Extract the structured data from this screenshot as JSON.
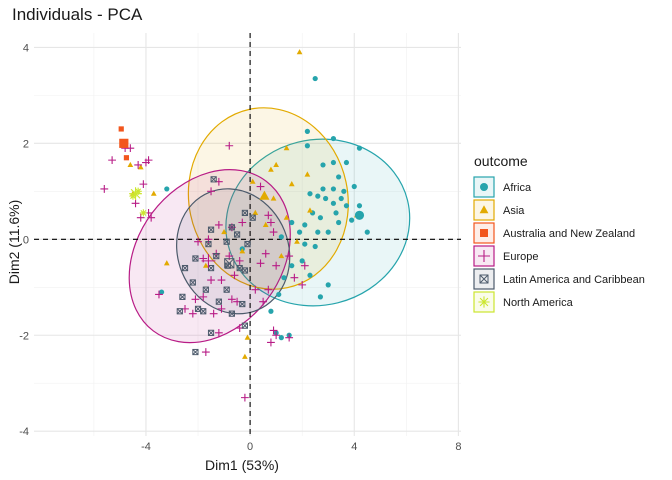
{
  "chart_data": {
    "type": "scatter",
    "title": "Individuals - PCA",
    "xlabel": "Dim1 (53%)",
    "ylabel": "Dim2 (11.6%)",
    "xlim": [
      -8.3,
      8.1
    ],
    "ylim": [
      -4.1,
      4.3
    ],
    "xticks": [
      -4,
      0,
      4,
      8
    ],
    "yticks": [
      -4,
      -2,
      0,
      2,
      4
    ],
    "xtick_labels": [
      "-4",
      "0",
      "4",
      "8"
    ],
    "ytick_labels": [
      "-4",
      "-2",
      "0",
      "2",
      "4"
    ],
    "grid": true,
    "reference_lines": {
      "x": 0,
      "y": 0,
      "style": "dashed"
    },
    "legend": {
      "title": "outcome",
      "placement": "right"
    },
    "series": [
      {
        "name": "Africa",
        "color": "#26A4AC",
        "marker": "circle",
        "centroid": [
          4.2,
          0.5
        ],
        "ellipse": {
          "center": [
            2.6,
            0.35
          ],
          "rx": 7.1,
          "ry": 3.45,
          "angle": -14
        },
        "points": [
          [
            2.5,
            3.35
          ],
          [
            2.2,
            2.25
          ],
          [
            3.2,
            2.1
          ],
          [
            2.2,
            1.95
          ],
          [
            4.2,
            1.9
          ],
          [
            2.8,
            1.55
          ],
          [
            3.2,
            1.6
          ],
          [
            3.7,
            1.6
          ],
          [
            3.4,
            1.3
          ],
          [
            4.0,
            1.1
          ],
          [
            2.8,
            1.05
          ],
          [
            3.2,
            1.05
          ],
          [
            3.6,
            1.0
          ],
          [
            2.3,
            0.95
          ],
          [
            2.6,
            0.9
          ],
          [
            2.9,
            0.85
          ],
          [
            3.5,
            0.85
          ],
          [
            3.2,
            0.75
          ],
          [
            4.2,
            0.7
          ],
          [
            3.7,
            0.7
          ],
          [
            3.3,
            0.55
          ],
          [
            2.4,
            0.55
          ],
          [
            2.7,
            0.45
          ],
          [
            3.9,
            0.4
          ],
          [
            1.6,
            0.35
          ],
          [
            2.1,
            0.3
          ],
          [
            3.4,
            0.35
          ],
          [
            1.9,
            0.15
          ],
          [
            2.6,
            0.15
          ],
          [
            3.0,
            0.15
          ],
          [
            4.5,
            0.15
          ],
          [
            1.2,
            0.05
          ],
          [
            2.1,
            -0.1
          ],
          [
            2.5,
            -0.15
          ],
          [
            2.0,
            -0.45
          ],
          [
            1.6,
            -0.55
          ],
          [
            2.3,
            -0.75
          ],
          [
            2.7,
            -1.2
          ],
          [
            3.0,
            -0.95
          ],
          [
            1.3,
            -0.8
          ],
          [
            1.1,
            -1.15
          ],
          [
            0.8,
            -1.5
          ],
          [
            1.0,
            -1.95
          ],
          [
            -3.4,
            -1.1
          ],
          [
            -3.2,
            1.05
          ],
          [
            -0.3,
            -0.2
          ],
          [
            1.2,
            -2.05
          ],
          [
            1.5,
            -2.0
          ]
        ]
      },
      {
        "name": "Asia",
        "color": "#E2AA00",
        "marker": "triangle",
        "centroid": [
          0.55,
          0.9
        ],
        "ellipse": {
          "center": [
            0.7,
            0.85
          ],
          "rx": 6.1,
          "ry": 3.8,
          "angle": -12
        },
        "points": [
          [
            1.9,
            3.9
          ],
          [
            -4.6,
            1.55
          ],
          [
            -4.2,
            1.5
          ],
          [
            1.4,
            1.9
          ],
          [
            2.2,
            1.35
          ],
          [
            1.0,
            1.55
          ],
          [
            0.8,
            1.45
          ],
          [
            1.6,
            1.15
          ],
          [
            0.1,
            1.2
          ],
          [
            -4.5,
            0.95
          ],
          [
            -3.7,
            0.95
          ],
          [
            0.9,
            0.85
          ],
          [
            2.3,
            0.6
          ],
          [
            1.4,
            0.45
          ],
          [
            4.1,
            0.5
          ],
          [
            0.6,
            0.3
          ],
          [
            -1.0,
            0.15
          ],
          [
            1.8,
            -0.05
          ],
          [
            1.2,
            -0.35
          ],
          [
            -1.7,
            -0.55
          ],
          [
            -0.1,
            -2.05
          ],
          [
            -0.2,
            -2.45
          ],
          [
            -0.3,
            -0.25
          ],
          [
            -3.2,
            -0.5
          ],
          [
            0.2,
            0.55
          ]
        ]
      },
      {
        "name": "Australia and New Zealand",
        "color": "#F2561D",
        "marker": "square",
        "centroid": [
          -4.85,
          2.0
        ],
        "ellipse": null,
        "points": [
          [
            -4.95,
            2.3
          ],
          [
            -4.75,
            1.7
          ],
          [
            -4.8,
            2.0
          ]
        ]
      },
      {
        "name": "Europe",
        "color": "#B81C86",
        "marker": "plus",
        "centroid": [
          -1.6,
          -0.45
        ],
        "ellipse": {
          "center": [
            -1.55,
            -0.35
          ],
          "rx": 7.2,
          "ry": 3.0,
          "angle": -53
        },
        "points": [
          [
            -5.3,
            1.65
          ],
          [
            -5.6,
            1.05
          ],
          [
            -4.8,
            1.9
          ],
          [
            -4.6,
            1.9
          ],
          [
            -4.3,
            1.55
          ],
          [
            -4.0,
            1.6
          ],
          [
            -3.9,
            1.65
          ],
          [
            -4.1,
            1.15
          ],
          [
            -4.4,
            0.75
          ],
          [
            -3.9,
            0.55
          ],
          [
            -4.2,
            0.45
          ],
          [
            -3.8,
            0.45
          ],
          [
            -0.8,
            1.95
          ],
          [
            -1.2,
            1.2
          ],
          [
            -1.5,
            1.0
          ],
          [
            0.4,
            1.1
          ],
          [
            0.7,
            0.5
          ],
          [
            0.8,
            0.35
          ],
          [
            0.9,
            0.15
          ],
          [
            0.6,
            -0.3
          ],
          [
            1.0,
            -0.55
          ],
          [
            1.5,
            -0.35
          ],
          [
            1.7,
            -0.8
          ],
          [
            2.1,
            -0.55
          ],
          [
            2.0,
            -0.95
          ],
          [
            -1.2,
            0.3
          ],
          [
            -0.7,
            0.25
          ],
          [
            -0.3,
            0.35
          ],
          [
            -1.6,
            0.0
          ],
          [
            -2.0,
            -0.05
          ],
          [
            -1.8,
            -0.4
          ],
          [
            -1.3,
            -0.3
          ],
          [
            -0.8,
            -0.35
          ],
          [
            -0.4,
            -0.45
          ],
          [
            -0.6,
            -0.75
          ],
          [
            -1.1,
            -0.85
          ],
          [
            -1.5,
            -0.85
          ],
          [
            -2.1,
            -1.25
          ],
          [
            -1.8,
            -1.2
          ],
          [
            -0.7,
            -1.25
          ],
          [
            0.2,
            -1.05
          ],
          [
            0.5,
            -1.3
          ],
          [
            0.7,
            -1.05
          ],
          [
            -2.2,
            -1.55
          ],
          [
            -1.4,
            -1.55
          ],
          [
            -1.1,
            -1.45
          ],
          [
            -0.4,
            -1.85
          ],
          [
            0.9,
            -1.9
          ],
          [
            1.0,
            -2.0
          ],
          [
            1.5,
            -2.05
          ],
          [
            -1.7,
            -2.35
          ],
          [
            0.8,
            -2.15
          ],
          [
            -0.2,
            -3.3
          ],
          [
            -3.5,
            -1.15
          ],
          [
            -2.5,
            -1.45
          ],
          [
            -0.5,
            -1.3
          ],
          [
            0.4,
            -0.5
          ],
          [
            -1.2,
            -1.95
          ]
        ]
      },
      {
        "name": "Latin America and Caribbean",
        "color": "#4C5A6B",
        "marker": "square-x",
        "centroid": [
          -0.8,
          -0.5
        ],
        "ellipse": {
          "center": [
            -0.65,
            -0.25
          ],
          "rx": 4.25,
          "ry": 2.65,
          "angle": -22
        },
        "points": [
          [
            -1.4,
            1.25
          ],
          [
            -0.2,
            0.55
          ],
          [
            0.1,
            0.45
          ],
          [
            -0.7,
            0.25
          ],
          [
            -1.5,
            0.2
          ],
          [
            -0.5,
            0.1
          ],
          [
            -1.6,
            -0.1
          ],
          [
            -0.9,
            -0.05
          ],
          [
            -0.1,
            -0.1
          ],
          [
            -1.3,
            -0.35
          ],
          [
            -0.4,
            -0.6
          ],
          [
            -1.5,
            -0.6
          ],
          [
            -0.2,
            -0.65
          ],
          [
            -2.1,
            -0.4
          ],
          [
            -2.5,
            -0.6
          ],
          [
            -2.2,
            -0.9
          ],
          [
            -1.7,
            -1.05
          ],
          [
            -0.9,
            -1.05
          ],
          [
            -2.6,
            -1.2
          ],
          [
            -0.3,
            -1.35
          ],
          [
            -1.2,
            -1.3
          ],
          [
            -0.7,
            -1.55
          ],
          [
            -2.0,
            -1.45
          ],
          [
            -1.8,
            -1.5
          ],
          [
            -0.2,
            -1.8
          ],
          [
            -1.5,
            -1.95
          ],
          [
            -2.7,
            -1.5
          ],
          [
            -2.1,
            -2.35
          ],
          [
            -0.85,
            -0.55
          ]
        ]
      },
      {
        "name": "North America",
        "color": "#CCE62E",
        "marker": "asterisk",
        "centroid": [
          -4.4,
          0.95
        ],
        "ellipse": null,
        "points": [
          [
            -4.5,
            0.9
          ],
          [
            -4.3,
            1.0
          ],
          [
            -4.1,
            0.55
          ]
        ]
      }
    ]
  }
}
